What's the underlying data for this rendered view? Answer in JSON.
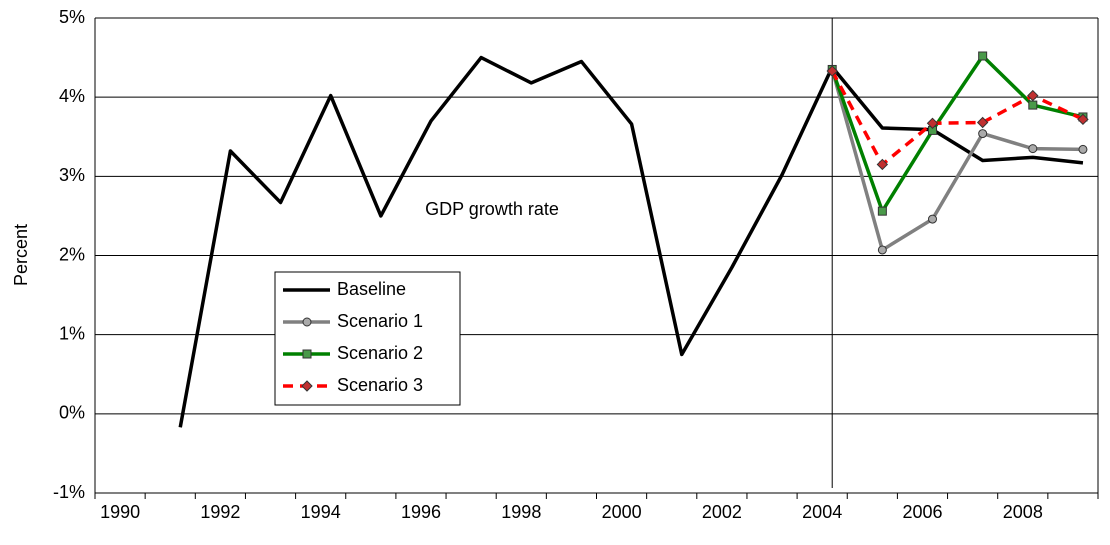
{
  "chart_data": {
    "type": "line",
    "annotation": "GDP growth rate",
    "ylabel": "Percent",
    "categories": [
      "1990",
      null,
      "1992",
      null,
      "1994",
      null,
      "1996",
      null,
      "1998",
      null,
      "2000",
      null,
      "2002",
      null,
      "2004",
      null,
      "2006",
      null,
      "2008",
      null
    ],
    "series": [
      {
        "name": "Baseline",
        "color": "#000000",
        "marker": "none",
        "dash": false,
        "values": [
          null,
          -0.17,
          3.32,
          2.67,
          4.02,
          2.5,
          3.7,
          4.5,
          4.18,
          4.45,
          3.66,
          0.75,
          1.85,
          3.02,
          4.38,
          3.61,
          3.59,
          3.2,
          3.24,
          3.17
        ]
      },
      {
        "name": "Scenario 1",
        "color": "#808080",
        "marker": "circle",
        "dash": false,
        "values": [
          null,
          null,
          null,
          null,
          null,
          null,
          null,
          null,
          null,
          null,
          null,
          null,
          null,
          null,
          4.35,
          2.07,
          2.46,
          3.54,
          3.35,
          3.34
        ]
      },
      {
        "name": "Scenario 2",
        "color": "#008000",
        "marker": "square",
        "dash": false,
        "values": [
          null,
          null,
          null,
          null,
          null,
          null,
          null,
          null,
          null,
          null,
          null,
          null,
          null,
          null,
          4.35,
          2.56,
          3.58,
          4.52,
          3.9,
          3.75
        ]
      },
      {
        "name": "Scenario 3",
        "color": "#ff0000",
        "marker": "diamond",
        "dash": true,
        "values": [
          null,
          null,
          null,
          null,
          null,
          null,
          null,
          null,
          null,
          null,
          null,
          null,
          null,
          null,
          4.33,
          3.15,
          3.67,
          3.68,
          4.02,
          3.72
        ]
      }
    ],
    "ylim": [
      -1,
      5
    ],
    "yticks": [
      {
        "value": -1,
        "label": "-1%"
      },
      {
        "value": 0,
        "label": "0%"
      },
      {
        "value": 1,
        "label": "1%"
      },
      {
        "value": 2,
        "label": "2%"
      },
      {
        "value": 3,
        "label": "3%"
      },
      {
        "value": 4,
        "label": "4%"
      },
      {
        "value": 5,
        "label": "5%"
      }
    ],
    "grid": true,
    "legend": "left"
  }
}
